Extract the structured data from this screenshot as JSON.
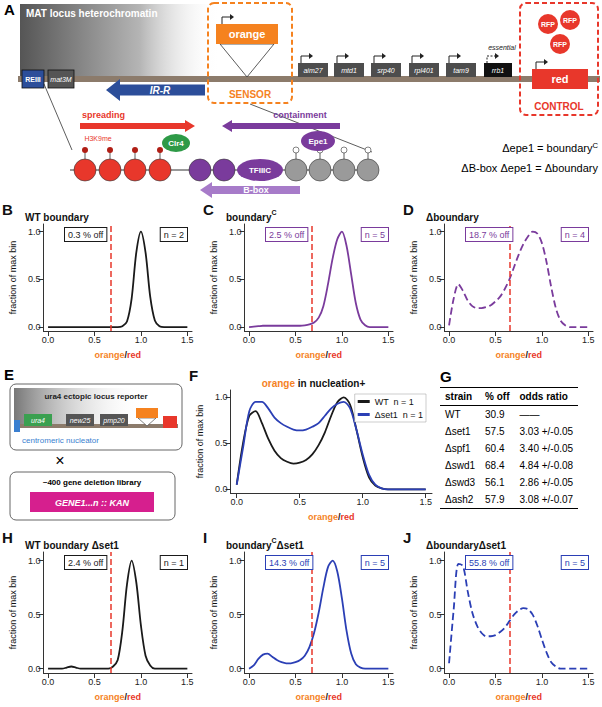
{
  "chart_data": [
    {
      "panel": "B",
      "type": "line",
      "title": [
        {
          "text": "WT boundary"
        }
      ],
      "annotations": [
        "0.3 % off",
        "n = 2"
      ],
      "threshold": 0.68,
      "xlabel": [
        {
          "text": "orange",
          "color": "#f5821f"
        },
        {
          "text": "/"
        },
        {
          "text": "red",
          "color": "#e8372b"
        }
      ],
      "ylabel": "fraction of max bin",
      "x": [
        0,
        0.05,
        0.1,
        0.15,
        0.2,
        0.25,
        0.3,
        0.35,
        0.4,
        0.45,
        0.5,
        0.55,
        0.6,
        0.65,
        0.7,
        0.75,
        0.8,
        0.85,
        0.9,
        0.95,
        1,
        1.05,
        1.1,
        1.15,
        1.2,
        1.25,
        1.3,
        1.35,
        1.4,
        1.45,
        1.5
      ],
      "series": [
        {
          "color": "#1a1a1a",
          "line_style": "solid",
          "values": [
            0,
            0,
            0,
            0,
            0,
            0,
            0,
            0,
            0,
            0,
            0,
            0,
            0,
            0,
            0,
            0,
            0.01,
            0.06,
            0.3,
            0.78,
            1.0,
            0.78,
            0.32,
            0.07,
            0.01,
            0,
            0,
            0,
            0,
            0,
            0
          ]
        }
      ],
      "xlim": [
        -0.05,
        1.55
      ],
      "xticks": [
        {
          "value": 0,
          "label": "0.0"
        },
        0.5,
        {
          "value": 1,
          "label": "1.0"
        },
        1.5
      ],
      "ylim": [
        -0.04,
        1.08
      ],
      "yticks": [
        {
          "value": 0,
          "label": "0.0"
        },
        0.5,
        {
          "value": 1,
          "label": "1.0"
        }
      ],
      "grid": false
    },
    {
      "panel": "C",
      "type": "line",
      "title": [
        {
          "text": "boundary"
        },
        {
          "text": "C",
          "sup": true
        }
      ],
      "annotations": [
        "2.5 % off",
        "n = 5"
      ],
      "threshold": 0.68,
      "xlabel": [
        {
          "text": "orange",
          "color": "#f5821f"
        },
        {
          "text": "/"
        },
        {
          "text": "red",
          "color": "#e8372b"
        }
      ],
      "ylabel": "fraction of max bin",
      "x": [
        0,
        0.05,
        0.1,
        0.15,
        0.2,
        0.25,
        0.3,
        0.35,
        0.4,
        0.45,
        0.5,
        0.55,
        0.6,
        0.65,
        0.7,
        0.75,
        0.8,
        0.85,
        0.9,
        0.95,
        1,
        1.05,
        1.1,
        1.15,
        1.2,
        1.25,
        1.3,
        1.35,
        1.4,
        1.45,
        1.5
      ],
      "series": [
        {
          "color": "#7a3b9c",
          "line_style": "solid",
          "values": [
            0,
            0.005,
            0.01,
            0.015,
            0.015,
            0.015,
            0.015,
            0.015,
            0.015,
            0.015,
            0.015,
            0.015,
            0.02,
            0.03,
            0.05,
            0.1,
            0.22,
            0.45,
            0.72,
            0.92,
            1.0,
            0.85,
            0.55,
            0.25,
            0.08,
            0.02,
            0,
            0,
            0,
            0,
            0
          ]
        }
      ],
      "xlim": [
        -0.05,
        1.55
      ],
      "xticks": [
        {
          "value": 0,
          "label": "0.0"
        },
        0.5,
        {
          "value": 1,
          "label": "1.0"
        },
        1.5
      ],
      "ylim": [
        -0.04,
        1.08
      ],
      "yticks": [
        {
          "value": 0,
          "label": "0.0"
        },
        0.5,
        {
          "value": 1,
          "label": "1.0"
        }
      ],
      "grid": false
    },
    {
      "panel": "D",
      "type": "line",
      "title": [
        {
          "text": "Δboundary"
        }
      ],
      "annotations": [
        "18.7 % off",
        "n = 4"
      ],
      "threshold": 0.65,
      "xlabel": [
        {
          "text": "orange",
          "color": "#f5821f"
        },
        {
          "text": "/"
        },
        {
          "text": "red",
          "color": "#e8372b"
        }
      ],
      "ylabel": "fraction of max bin",
      "x": [
        0,
        0.05,
        0.1,
        0.15,
        0.2,
        0.25,
        0.3,
        0.35,
        0.4,
        0.45,
        0.5,
        0.55,
        0.6,
        0.65,
        0.7,
        0.75,
        0.8,
        0.85,
        0.9,
        0.95,
        1,
        1.05,
        1.1,
        1.15,
        1.2,
        1.25,
        1.3,
        1.35,
        1.4,
        1.45,
        1.5
      ],
      "series": [
        {
          "color": "#7a3b9c",
          "line_style": "dashed",
          "values": [
            0.02,
            0.3,
            0.45,
            0.38,
            0.28,
            0.22,
            0.2,
            0.2,
            0.21,
            0.23,
            0.27,
            0.32,
            0.4,
            0.5,
            0.63,
            0.76,
            0.87,
            0.95,
            1.0,
            0.98,
            0.88,
            0.68,
            0.42,
            0.2,
            0.07,
            0.02,
            0,
            0,
            0,
            0,
            0
          ]
        }
      ],
      "xlim": [
        -0.05,
        1.55
      ],
      "xticks": [
        {
          "value": 0,
          "label": "0.0"
        },
        0.5,
        {
          "value": 1,
          "label": "1.0"
        },
        1.5
      ],
      "ylim": [
        -0.04,
        1.08
      ],
      "yticks": [
        {
          "value": 0,
          "label": "0.0"
        },
        0.5,
        {
          "value": 1,
          "label": "1.0"
        }
      ],
      "grid": false
    },
    {
      "panel": "F",
      "type": "line",
      "title": [
        {
          "text": "orange",
          "color": "#f5821f"
        },
        {
          "text": " in nucleation+"
        }
      ],
      "legend": "upper right",
      "xlabel": [
        {
          "text": "orange",
          "color": "#f5821f"
        },
        {
          "text": "/"
        },
        {
          "text": "red",
          "color": "#e8372b"
        }
      ],
      "ylabel": "fraction of max bin",
      "x": [
        0,
        0.05,
        0.1,
        0.15,
        0.2,
        0.25,
        0.3,
        0.35,
        0.4,
        0.45,
        0.5,
        0.55,
        0.6,
        0.65,
        0.7,
        0.75,
        0.8,
        0.85,
        0.9,
        0.95,
        1,
        1.05,
        1.1,
        1.15,
        1.2,
        1.25,
        1.3,
        1.35,
        1.4,
        1.45,
        1.5
      ],
      "series": [
        {
          "name": "WT",
          "n_label": "n = 1",
          "color": "#1a1a1a",
          "line_style": "solid",
          "values": [
            0.05,
            0.5,
            0.8,
            0.85,
            0.72,
            0.55,
            0.42,
            0.34,
            0.3,
            0.28,
            0.29,
            0.32,
            0.38,
            0.48,
            0.62,
            0.8,
            0.95,
            1.0,
            0.92,
            0.65,
            0.35,
            0.13,
            0.04,
            0.01,
            0,
            0,
            0,
            0,
            0,
            0,
            0
          ]
        },
        {
          "name": "Δset1",
          "n_label": "n = 1",
          "color": "#2b3fb5",
          "line_style": "solid",
          "values": [
            0.05,
            0.45,
            0.85,
            0.95,
            0.95,
            0.88,
            0.78,
            0.72,
            0.68,
            0.65,
            0.64,
            0.65,
            0.68,
            0.72,
            0.8,
            0.88,
            0.93,
            0.95,
            0.88,
            0.65,
            0.38,
            0.16,
            0.05,
            0.01,
            0,
            0,
            0,
            0,
            0,
            0,
            0
          ]
        }
      ],
      "xlim": [
        -0.05,
        1.55
      ],
      "xticks": [
        {
          "value": 0,
          "label": "0.0"
        },
        0.5,
        {
          "value": 1,
          "label": "1.0"
        },
        1.5
      ],
      "ylim": [
        -0.04,
        1.08
      ],
      "yticks": [
        {
          "value": 0,
          "label": "0.0"
        },
        0.5,
        {
          "value": 1,
          "label": "1.0"
        }
      ],
      "grid": false
    },
    {
      "panel": "H",
      "type": "line",
      "title": [
        {
          "text": "WT boundary Δset1"
        }
      ],
      "annotations": [
        "2.4 % off",
        "n = 1"
      ],
      "threshold": 0.68,
      "xlabel": [
        {
          "text": "orange",
          "color": "#f5821f"
        },
        {
          "text": "/"
        },
        {
          "text": "red",
          "color": "#e8372b"
        }
      ],
      "ylabel": "fraction of max bin",
      "x": [
        0,
        0.05,
        0.1,
        0.15,
        0.2,
        0.25,
        0.3,
        0.35,
        0.4,
        0.45,
        0.5,
        0.55,
        0.6,
        0.65,
        0.7,
        0.75,
        0.8,
        0.85,
        0.9,
        0.95,
        1,
        1.05,
        1.1,
        1.15,
        1.2,
        1.25,
        1.3,
        1.35,
        1.4,
        1.45,
        1.5
      ],
      "series": [
        {
          "color": "#1a1a1a",
          "line_style": "solid",
          "values": [
            0,
            0,
            0,
            0,
            0.01,
            0.02,
            0.01,
            0,
            0,
            0,
            0,
            0,
            0,
            0,
            0.02,
            0.08,
            0.35,
            0.78,
            1.0,
            0.8,
            0.4,
            0.12,
            0.03,
            0,
            0,
            0,
            0,
            0,
            0,
            0,
            0
          ]
        }
      ],
      "xlim": [
        -0.05,
        1.55
      ],
      "xticks": [
        {
          "value": 0,
          "label": "0.0"
        },
        0.5,
        {
          "value": 1,
          "label": "1.0"
        },
        1.5
      ],
      "ylim": [
        -0.04,
        1.08
      ],
      "yticks": [
        {
          "value": 0,
          "label": "0.0"
        },
        0.5,
        {
          "value": 1,
          "label": "1.0"
        }
      ],
      "grid": false
    },
    {
      "panel": "I",
      "type": "line",
      "title": [
        {
          "text": "boundary"
        },
        {
          "text": "C",
          "sup": true
        },
        {
          "text": "Δset1"
        }
      ],
      "annotations": [
        "14.3 % off",
        "n = 5"
      ],
      "threshold": 0.68,
      "xlabel": [
        {
          "text": "orange",
          "color": "#f5821f"
        },
        {
          "text": "/"
        },
        {
          "text": "red",
          "color": "#e8372b"
        }
      ],
      "ylabel": "fraction of max bin",
      "x": [
        0,
        0.05,
        0.1,
        0.15,
        0.2,
        0.25,
        0.3,
        0.35,
        0.4,
        0.45,
        0.5,
        0.55,
        0.6,
        0.65,
        0.7,
        0.75,
        0.8,
        0.85,
        0.9,
        0.95,
        1,
        1.05,
        1.1,
        1.15,
        1.2,
        1.25,
        1.3,
        1.35,
        1.4,
        1.45,
        1.5
      ],
      "series": [
        {
          "color": "#2b3fb5",
          "line_style": "solid",
          "values": [
            0,
            0.03,
            0.09,
            0.13,
            0.14,
            0.11,
            0.08,
            0.06,
            0.05,
            0.05,
            0.06,
            0.08,
            0.12,
            0.2,
            0.33,
            0.52,
            0.75,
            0.94,
            1.0,
            0.9,
            0.65,
            0.35,
            0.14,
            0.04,
            0.01,
            0,
            0,
            0,
            0,
            0,
            0
          ]
        }
      ],
      "xlim": [
        -0.05,
        1.55
      ],
      "xticks": [
        {
          "value": 0,
          "label": "0.0"
        },
        0.5,
        {
          "value": 1,
          "label": "1.0"
        },
        1.5
      ],
      "ylim": [
        -0.04,
        1.08
      ],
      "yticks": [
        {
          "value": 0,
          "label": "0.0"
        },
        0.5,
        {
          "value": 1,
          "label": "1.0"
        }
      ],
      "grid": false
    },
    {
      "panel": "J",
      "type": "line",
      "title": [
        {
          "text": "ΔboundaryΔset1"
        }
      ],
      "annotations": [
        "55.8 % off",
        "n = 5"
      ],
      "threshold": 0.65,
      "xlabel": [
        {
          "text": "orange",
          "color": "#f5821f"
        },
        {
          "text": "/"
        },
        {
          "text": "red",
          "color": "#e8372b"
        }
      ],
      "ylabel": "fraction of max bin",
      "x": [
        0,
        0.05,
        0.1,
        0.15,
        0.2,
        0.25,
        0.3,
        0.35,
        0.4,
        0.45,
        0.5,
        0.55,
        0.6,
        0.65,
        0.7,
        0.75,
        0.8,
        0.85,
        0.9,
        0.95,
        1,
        1.05,
        1.1,
        1.15,
        1.2,
        1.25,
        1.3,
        1.35,
        1.4,
        1.45,
        1.5
      ],
      "series": [
        {
          "color": "#2b3fb5",
          "line_style": "dashed",
          "values": [
            0.05,
            0.55,
            0.97,
            0.95,
            0.72,
            0.52,
            0.4,
            0.33,
            0.3,
            0.3,
            0.31,
            0.34,
            0.38,
            0.44,
            0.5,
            0.54,
            0.56,
            0.55,
            0.5,
            0.4,
            0.27,
            0.15,
            0.06,
            0.02,
            0,
            0,
            0,
            0,
            0,
            0,
            0
          ]
        }
      ],
      "xlim": [
        -0.05,
        1.55
      ],
      "xticks": [
        {
          "value": 0,
          "label": "0.0"
        },
        0.5,
        {
          "value": 1,
          "label": "1.0"
        },
        1.5
      ],
      "ylim": [
        -0.04,
        1.08
      ],
      "yticks": [
        {
          "value": 0,
          "label": "0.0"
        },
        0.5,
        {
          "value": 1,
          "label": "1.0"
        }
      ],
      "grid": false
    }
  ],
  "panel_A": {
    "letter": "A",
    "heterochromatin": "MAT locus heterochromatin",
    "reiii": "REIII",
    "mat3m": "mat3M",
    "irr": "IR-R",
    "sensor_gene": "orange",
    "sensor": "SENSOR",
    "genes": [
      "aim27",
      "mtd1",
      "srp40",
      "rpl401",
      "tam9"
    ],
    "essential_gene": "rrb1",
    "essential": "essential",
    "rfp": [
      "RFP",
      "RFP",
      "RFP"
    ],
    "control_gene": "red",
    "control": "CONTROL",
    "spreading": "spreading",
    "h3k9me": "H3K9me",
    "clr4": "Clr4",
    "containment": "containment",
    "epe1": "Epe1",
    "tfiiic": "TFIIIC",
    "bbox": "B-box",
    "definitions": [
      [
        {
          "text": "Δepe1 = boundary"
        },
        {
          "text": "C",
          "sup": true
        }
      ],
      [
        {
          "text": "ΔB-box Δepe1 = Δboundary"
        }
      ]
    ]
  },
  "panel_E": {
    "letter": "E",
    "reporter": "ura4 ectopic locus reporter",
    "genes": [
      "ura4",
      "new25",
      "pmp20"
    ],
    "nucleator": "centromeric nucleator",
    "cross": "×",
    "library": "~400 gene deletion library",
    "cassette": "GENE1...n :: KAN"
  },
  "panel_G": {
    "letter": "G",
    "table": {
      "header": [
        "strain",
        "% off",
        "odds ratio"
      ],
      "rows": [
        [
          "WT",
          "30.9",
          "——"
        ],
        [
          "Δset1",
          "57.5",
          "3.03 +/-0.05"
        ],
        [
          "Δspf1",
          "60.4",
          "3.40 +/-0.05"
        ],
        [
          "Δswd1",
          "68.4",
          "4.84 +/-0.08"
        ],
        [
          "Δswd3",
          "56.1",
          "2.86 +/-0.05"
        ],
        [
          "Δash2",
          "57.9",
          "3.08 +/-0.07"
        ]
      ]
    }
  }
}
